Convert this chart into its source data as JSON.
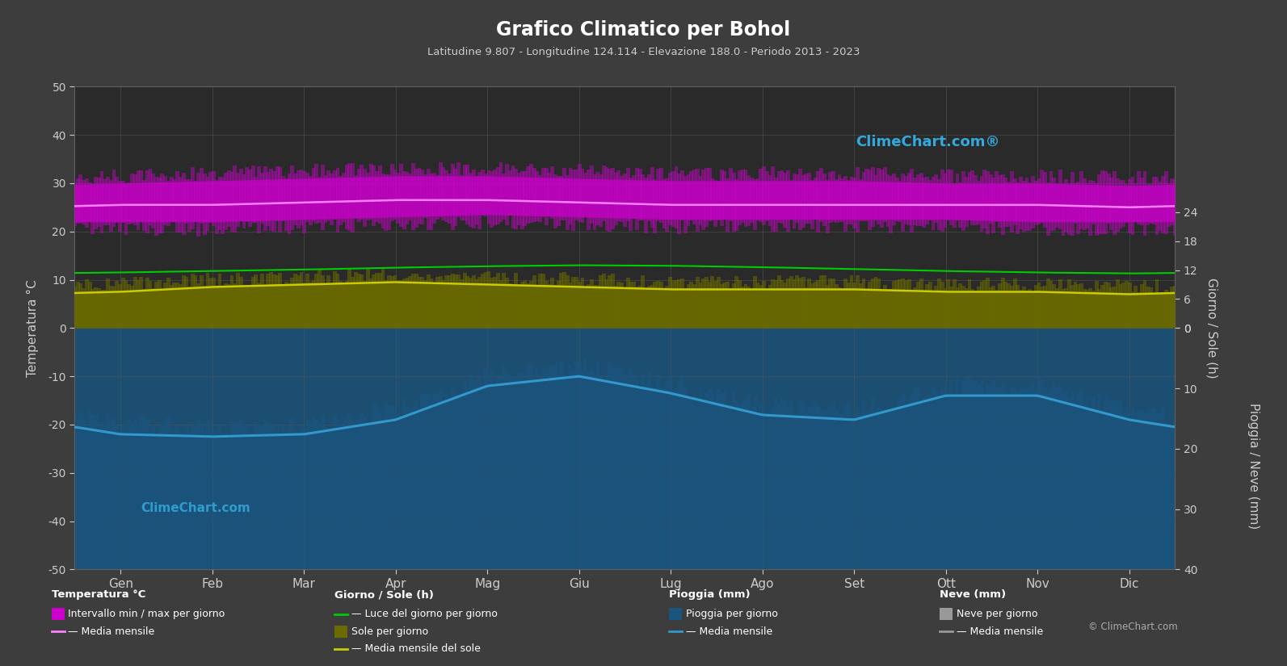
{
  "title": "Grafico Climatico per Bohol",
  "subtitle": "Latitudine 9.807 - Longitudine 124.114 - Elevazione 188.0 - Periodo 2013 - 2023",
  "months": [
    "Gen",
    "Feb",
    "Mar",
    "Apr",
    "Mag",
    "Giu",
    "Lug",
    "Ago",
    "Set",
    "Ott",
    "Nov",
    "Dic"
  ],
  "temp_min_monthly": [
    22.0,
    22.0,
    22.5,
    23.0,
    23.5,
    23.0,
    22.5,
    22.5,
    22.5,
    22.5,
    22.0,
    22.0
  ],
  "temp_max_monthly": [
    30.0,
    30.5,
    31.0,
    31.5,
    31.5,
    31.0,
    30.5,
    30.5,
    30.5,
    30.0,
    30.0,
    29.5
  ],
  "temp_mean_monthly": [
    25.5,
    25.5,
    26.0,
    26.5,
    26.5,
    26.0,
    25.5,
    25.5,
    25.5,
    25.5,
    25.5,
    25.0
  ],
  "daylight_monthly": [
    11.5,
    11.8,
    12.1,
    12.5,
    12.8,
    13.0,
    12.9,
    12.6,
    12.2,
    11.8,
    11.5,
    11.3
  ],
  "sunshine_monthly": [
    7.5,
    8.5,
    9.0,
    9.5,
    9.0,
    8.5,
    8.0,
    8.0,
    8.0,
    7.5,
    7.5,
    7.0
  ],
  "rainfall_mean_monthly": [
    -22.0,
    -22.5,
    -22.0,
    -19.0,
    -12.0,
    -10.0,
    -13.5,
    -18.0,
    -19.0,
    -14.0,
    -14.0,
    -19.0
  ],
  "ylim": [
    -50,
    50
  ],
  "left_yticks": [
    -50,
    -40,
    -30,
    -20,
    -10,
    0,
    10,
    20,
    30,
    40,
    50
  ],
  "sun_ytick_vals": [
    0,
    6,
    12,
    18,
    24
  ],
  "sun_ytick_pos": [
    0,
    6,
    12,
    18,
    24
  ],
  "rain_ytick_vals": [
    0,
    10,
    20,
    30,
    40
  ],
  "rain_ytick_pos": [
    0,
    -12.5,
    -25.0,
    -37.5,
    -50.0
  ],
  "colors": {
    "bg": "#3d3d3d",
    "plot_bg": "#2a2a2a",
    "grid": "#555555",
    "magenta_band": "#cc00cc",
    "olive_band": "#6b6b00",
    "blue_band": "#1a5580",
    "temp_mean_line": "#ff80ff",
    "daylight_line": "#00cc00",
    "sunshine_line": "#cccc00",
    "rain_mean_line": "#3399cc",
    "title": "#ffffff",
    "subtitle": "#cccccc",
    "axis_label": "#cccccc",
    "tick_label": "#cccccc",
    "watermark": "#33aadd",
    "neve_band": "#999999"
  }
}
